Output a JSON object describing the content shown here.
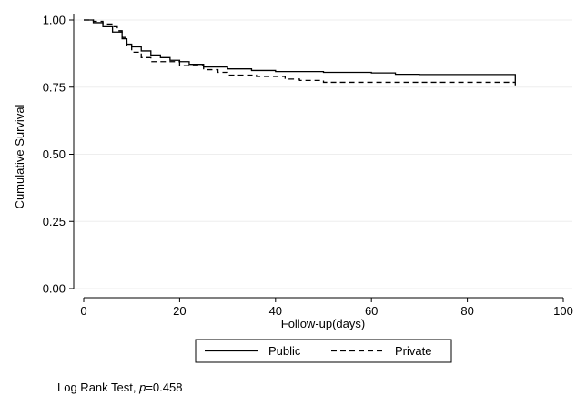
{
  "chart_data": {
    "type": "line",
    "step": true,
    "xlabel": "Follow-up(days)",
    "ylabel": "Cumulative Survival",
    "xlim": [
      0,
      100
    ],
    "ylim": [
      0,
      1
    ],
    "x_ticks": [
      "0",
      "20",
      "40",
      "60",
      "80",
      "100"
    ],
    "y_ticks": [
      "0.00",
      "0.25",
      "0.50",
      "0.75",
      "1.00"
    ],
    "grid": "horizontal",
    "legend_position": "bottom",
    "series": [
      {
        "name": "Public",
        "style": "solid",
        "color": "#000000",
        "points": [
          [
            0,
            1.0
          ],
          [
            2,
            0.99
          ],
          [
            4,
            0.975
          ],
          [
            6,
            0.955
          ],
          [
            8,
            0.93
          ],
          [
            9,
            0.91
          ],
          [
            10,
            0.9
          ],
          [
            12,
            0.885
          ],
          [
            14,
            0.87
          ],
          [
            16,
            0.86
          ],
          [
            18,
            0.85
          ],
          [
            20,
            0.845
          ],
          [
            22,
            0.835
          ],
          [
            25,
            0.825
          ],
          [
            30,
            0.818
          ],
          [
            35,
            0.812
          ],
          [
            40,
            0.808
          ],
          [
            50,
            0.805
          ],
          [
            60,
            0.803
          ],
          [
            65,
            0.798
          ],
          [
            70,
            0.797
          ],
          [
            90,
            0.797
          ],
          [
            90,
            0.77
          ]
        ]
      },
      {
        "name": "Private",
        "style": "dashed",
        "color": "#000000",
        "points": [
          [
            0,
            1.0
          ],
          [
            2,
            0.995
          ],
          [
            4,
            0.985
          ],
          [
            6,
            0.975
          ],
          [
            7,
            0.96
          ],
          [
            8,
            0.935
          ],
          [
            9,
            0.905
          ],
          [
            10,
            0.88
          ],
          [
            12,
            0.86
          ],
          [
            14,
            0.845
          ],
          [
            20,
            0.83
          ],
          [
            25,
            0.815
          ],
          [
            28,
            0.805
          ],
          [
            30,
            0.795
          ],
          [
            36,
            0.79
          ],
          [
            42,
            0.78
          ],
          [
            45,
            0.775
          ],
          [
            50,
            0.768
          ],
          [
            90,
            0.768
          ],
          [
            90,
            0.745
          ]
        ]
      }
    ]
  },
  "note": {
    "prefix": "Log Rank Test, ",
    "italic": "p",
    "suffix": "=0.458"
  }
}
